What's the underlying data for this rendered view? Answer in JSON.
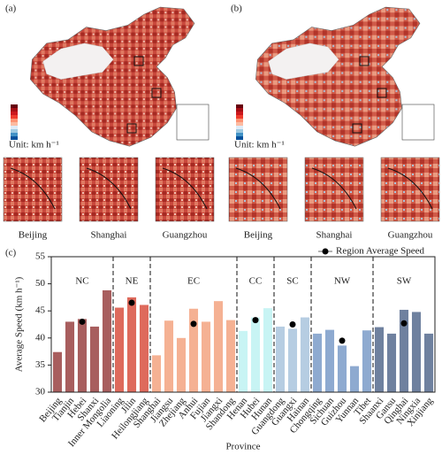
{
  "maps": [
    {
      "label": "(a)",
      "unit": "Unit: km h⁻¹",
      "insets": [
        "Beijing",
        "Shanghai",
        "Guangzhou"
      ]
    },
    {
      "label": "(b)",
      "unit": "Unit: km h⁻¹",
      "insets": [
        "Beijing",
        "Shanghai",
        "Guangzhou"
      ]
    }
  ],
  "chart_data": {
    "type": "bar",
    "panel_label": "(c)",
    "x_label": "Province",
    "y_label": "Average Speed (km h⁻¹)",
    "legend_label": "Region Average Speed",
    "ylim": [
      30,
      55
    ],
    "yticks": [
      30,
      35,
      40,
      45,
      50,
      55
    ],
    "regions": [
      {
        "label": "NC",
        "categories": [
          "Beijing",
          "Tianjin",
          "Hebei",
          "Shanxi",
          "Inner Mongolia"
        ],
        "values": [
          37.4,
          43.0,
          43.5,
          42.1,
          48.8
        ],
        "colors": [
          "#a85e5e",
          "#a85e5e",
          "#a85e5e",
          "#a85e5e",
          "#a85e5e"
        ],
        "average": 43.0
      },
      {
        "label": "NE",
        "categories": [
          "Liaoning",
          "Jilin",
          "Heilongjiang"
        ],
        "values": [
          45.6,
          47.5,
          46.1
        ],
        "colors": [
          "#de6a5c",
          "#de6a5c",
          "#de6a5c"
        ],
        "average": 46.5
      },
      {
        "label": "EC",
        "categories": [
          "Shanghai",
          "Jiangsu",
          "Zhejiang",
          "Anhui",
          "Fujian",
          "Jiangxi",
          "Shandong"
        ],
        "values": [
          36.8,
          43.2,
          40.0,
          45.4,
          43.0,
          46.8,
          43.3
        ],
        "colors": [
          "#f5b193",
          "#f5b193",
          "#f5b193",
          "#f5b193",
          "#f5b193",
          "#f5b193",
          "#f5b193"
        ],
        "average": 42.6
      },
      {
        "label": "CC",
        "categories": [
          "Henan",
          "Hubei",
          "Hunan"
        ],
        "values": [
          41.3,
          43.8,
          45.5
        ],
        "colors": [
          "#c8f4f4",
          "#c8f4f4",
          "#c8f4f4"
        ],
        "average": 43.3
      },
      {
        "label": "SC",
        "categories": [
          "Guangdong",
          "Guangxi",
          "Hainan"
        ],
        "values": [
          42.1,
          41.7,
          43.8
        ],
        "colors": [
          "#b6cde2",
          "#b6cde2",
          "#b6cde2"
        ],
        "average": 42.5
      },
      {
        "label": "NW",
        "categories": [
          "Chongqing",
          "Sichuan",
          "Guizhou",
          "Yunnan",
          "Tibet"
        ],
        "values": [
          40.8,
          41.5,
          38.6,
          34.8,
          41.4
        ],
        "colors": [
          "#8eaad0",
          "#8eaad0",
          "#8eaad0",
          "#8eaad0",
          "#8eaad0"
        ],
        "average": 39.5
      },
      {
        "label": "SW",
        "categories": [
          "Shaanxi",
          "Gansu",
          "Qinghai",
          "Ningxia",
          "Xinjiang"
        ],
        "values": [
          42.0,
          40.8,
          45.2,
          44.8,
          40.8
        ],
        "colors": [
          "#6f819f",
          "#6f819f",
          "#6f819f",
          "#6f819f",
          "#6f819f"
        ],
        "average": 42.7
      }
    ]
  }
}
